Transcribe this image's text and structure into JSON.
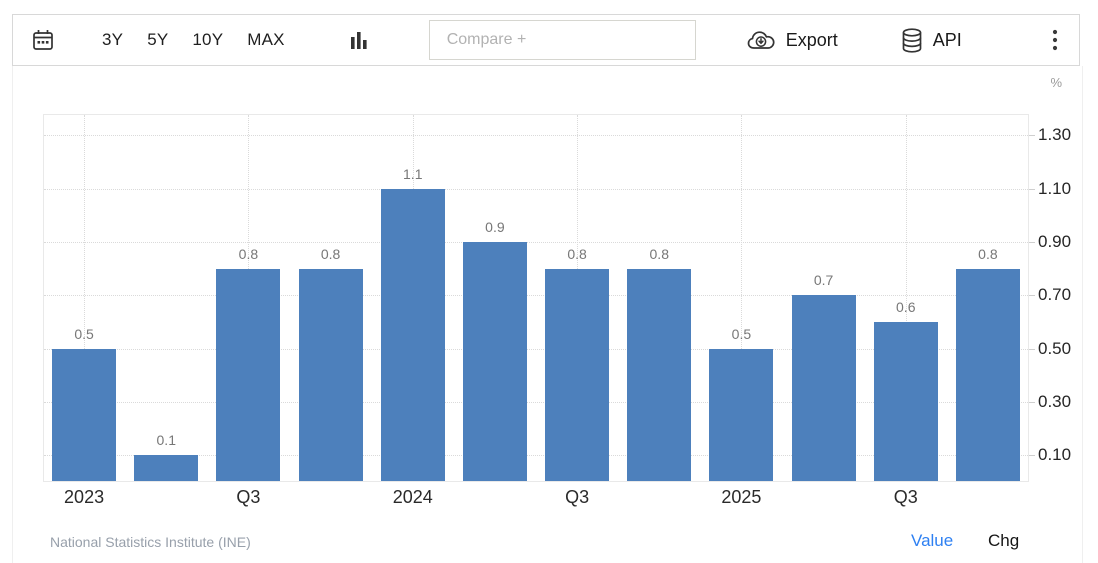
{
  "toolbar": {
    "ranges": [
      "3Y",
      "5Y",
      "10Y",
      "MAX"
    ],
    "compare_placeholder": "Compare +",
    "export_label": "Export",
    "api_label": "API",
    "icons": [
      "calendar-icon",
      "bar-chart-icon",
      "cloud-download-icon",
      "database-icon",
      "kebab-menu-icon"
    ]
  },
  "chart_data": {
    "type": "bar",
    "title": "",
    "unit": "%",
    "bar_color": "#4d80bc",
    "values": [
      0.5,
      0.1,
      0.8,
      0.8,
      1.1,
      0.9,
      0.8,
      0.8,
      0.5,
      0.7,
      0.6,
      0.8
    ],
    "bar_labels": [
      "0.5",
      "0.1",
      "0.8",
      "0.8",
      "1.1",
      "0.9",
      "0.8",
      "0.8",
      "0.5",
      "0.7",
      "0.6",
      "0.8"
    ],
    "x_tick_labels": [
      "2023",
      "",
      "Q3",
      "",
      "2024",
      "",
      "Q3",
      "",
      "2025",
      "",
      "Q3",
      ""
    ],
    "y_ticks": [
      1.3,
      1.1,
      0.9,
      0.7,
      0.5,
      0.3,
      0.1
    ],
    "y_tick_labels": [
      "1.30",
      "1.10",
      "0.90",
      "0.70",
      "0.50",
      "0.30",
      "0.10"
    ],
    "ylim": [
      0,
      1.38
    ],
    "grid": "dotted",
    "legend": "none",
    "y_axis_position": "right"
  },
  "footer": {
    "source": "National Statistics Institute (INE)",
    "value_label": "Value",
    "chg_label": "Chg",
    "active_toggle": "Value",
    "active_color": "#2e80f2"
  }
}
